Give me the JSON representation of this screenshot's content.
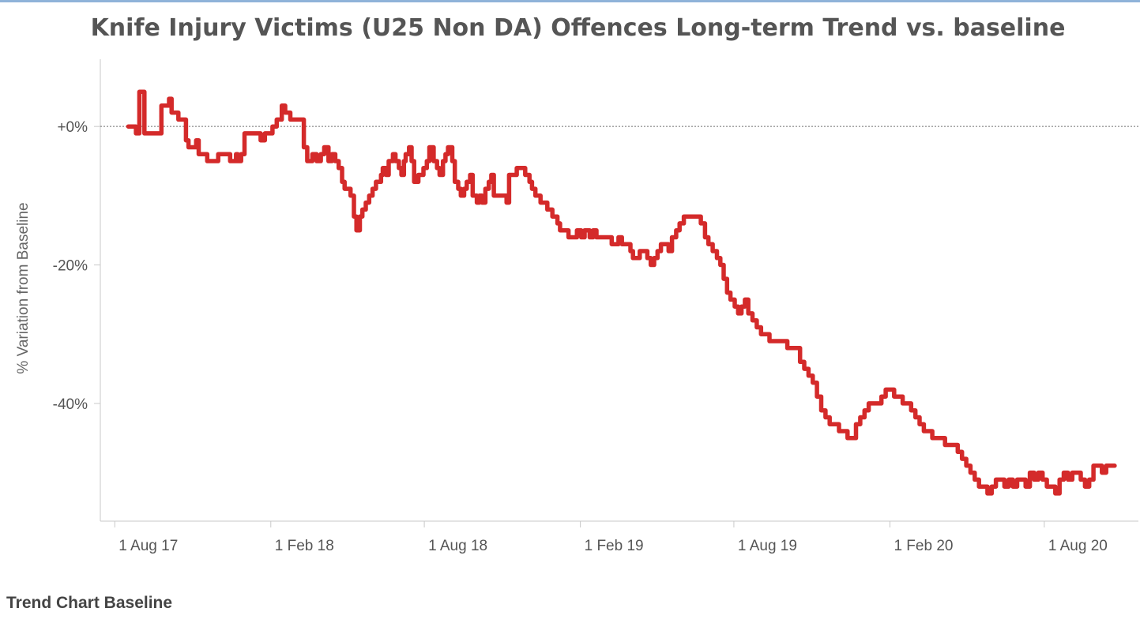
{
  "page": {
    "title": "Knife Injury Victims (U25 Non DA) Offences Long-term Trend vs. baseline",
    "footer": "Trend Chart Baseline"
  },
  "chart_data": {
    "type": "line",
    "title": "Knife Injury Victims (U25 Non DA) Offences Long-term Trend vs. baseline",
    "xlabel": "",
    "ylabel": "% Variation from Baseline",
    "xlim": [
      "2017-07-15",
      "2020-11-20"
    ],
    "ylim": [
      -57,
      8
    ],
    "y_ticks": [
      {
        "value": 0,
        "label": "+0%"
      },
      {
        "value": -20,
        "label": "-20%"
      },
      {
        "value": -40,
        "label": "-40%"
      }
    ],
    "x_ticks": [
      {
        "value": "2017-08-01",
        "label": "1 Aug 17"
      },
      {
        "value": "2018-02-01",
        "label": "1 Feb 18"
      },
      {
        "value": "2018-08-01",
        "label": "1 Aug 18"
      },
      {
        "value": "2019-02-01",
        "label": "1 Feb 19"
      },
      {
        "value": "2019-08-01",
        "label": "1 Aug 19"
      },
      {
        "value": "2020-02-01",
        "label": "1 Feb 20"
      },
      {
        "value": "2020-08-01",
        "label": "1 Aug 20"
      }
    ],
    "baseline": {
      "value": 0,
      "style": "dotted"
    },
    "grid": false,
    "series": [
      {
        "color": "#d42a2a",
        "x": [
          "2017-08-17",
          "2017-08-23",
          "2017-08-26",
          "2017-08-30",
          "2017-09-03",
          "2017-09-05",
          "2017-09-14",
          "2017-09-17",
          "2017-09-25",
          "2017-09-30",
          "2017-10-04",
          "2017-10-07",
          "2017-10-15",
          "2017-10-18",
          "2017-10-24",
          "2017-10-27",
          "2017-11-01",
          "2017-11-05",
          "2017-11-08",
          "2017-11-10",
          "2017-11-12",
          "2017-11-18",
          "2017-11-23",
          "2017-12-01",
          "2017-12-15",
          "2017-12-18",
          "2017-12-22",
          "2017-12-24",
          "2017-12-28",
          "2018-01-01",
          "2018-01-04",
          "2018-01-08",
          "2018-01-15",
          "2018-01-20",
          "2018-01-25",
          "2018-02-01",
          "2018-02-03",
          "2018-02-08",
          "2018-02-14",
          "2018-02-18",
          "2018-02-24",
          "2018-02-27",
          "2018-03-04",
          "2018-03-07",
          "2018-03-12",
          "2018-03-16",
          "2018-03-22",
          "2018-03-27",
          "2018-04-01",
          "2018-04-05",
          "2018-04-10",
          "2018-04-14",
          "2018-04-18",
          "2018-04-22",
          "2018-04-26",
          "2018-04-29",
          "2018-05-02",
          "2018-05-06",
          "2018-05-10",
          "2018-05-13",
          "2018-05-17",
          "2018-05-20",
          "2018-05-24",
          "2018-05-28",
          "2018-06-01",
          "2018-06-05",
          "2018-06-07",
          "2018-06-11",
          "2018-06-13",
          "2018-06-17",
          "2018-06-20",
          "2018-06-25",
          "2018-06-28",
          "2018-07-02",
          "2018-07-05",
          "2018-07-08",
          "2018-07-10",
          "2018-07-14",
          "2018-07-17",
          "2018-07-20",
          "2018-07-25",
          "2018-07-27",
          "2018-07-31",
          "2018-08-04",
          "2018-08-07",
          "2018-08-12",
          "2018-08-16",
          "2018-08-19",
          "2018-08-23",
          "2018-08-26",
          "2018-08-29",
          "2018-09-03",
          "2018-09-06",
          "2018-09-10",
          "2018-09-13",
          "2018-09-17",
          "2018-09-20",
          "2018-09-24",
          "2018-09-27",
          "2018-10-02",
          "2018-10-05",
          "2018-10-08",
          "2018-10-12",
          "2018-10-16",
          "2018-10-19",
          "2018-10-22",
          "2018-10-26",
          "2018-10-29",
          "2018-11-02",
          "2018-11-06",
          "2018-11-09",
          "2018-11-14",
          "2018-11-18",
          "2018-11-20",
          "2018-11-28",
          "2018-12-03",
          "2018-12-06",
          "2018-12-10",
          "2018-12-16",
          "2018-12-20",
          "2018-12-24",
          "2018-12-30",
          "2019-01-05",
          "2019-01-08",
          "2019-01-13",
          "2019-01-18",
          "2019-01-22",
          "2019-01-28",
          "2019-02-02",
          "2019-02-06",
          "2019-02-12",
          "2019-02-16",
          "2019-02-20",
          "2019-02-25",
          "2019-03-01",
          "2019-03-06",
          "2019-03-10",
          "2019-03-14",
          "2019-03-18",
          "2019-03-22",
          "2019-03-27",
          "2019-04-01",
          "2019-04-04",
          "2019-04-08",
          "2019-04-12",
          "2019-04-17",
          "2019-04-21",
          "2019-04-25",
          "2019-04-29",
          "2019-05-03",
          "2019-05-07",
          "2019-05-12",
          "2019-05-16",
          "2019-05-20",
          "2019-05-25",
          "2019-05-29",
          "2019-06-03",
          "2019-06-08",
          "2019-06-13",
          "2019-06-18",
          "2019-06-23",
          "2019-06-28",
          "2019-07-02",
          "2019-07-07",
          "2019-07-12",
          "2019-07-16",
          "2019-07-20",
          "2019-07-24",
          "2019-07-28",
          "2019-08-02",
          "2019-08-06",
          "2019-08-10",
          "2019-08-14",
          "2019-08-18",
          "2019-08-23",
          "2019-08-28",
          "2019-09-02",
          "2019-09-07",
          "2019-09-12",
          "2019-09-18",
          "2019-09-23",
          "2019-09-28",
          "2019-10-03",
          "2019-10-08",
          "2019-10-13",
          "2019-10-18",
          "2019-10-23",
          "2019-10-28",
          "2019-11-02",
          "2019-11-07",
          "2019-11-12",
          "2019-11-17",
          "2019-11-22",
          "2019-11-28",
          "2019-12-03",
          "2019-12-08",
          "2019-12-13",
          "2019-12-18",
          "2019-12-23",
          "2019-12-28",
          "2020-01-02",
          "2020-01-07",
          "2020-01-12",
          "2020-01-17",
          "2020-01-22",
          "2020-01-27",
          "2020-02-01",
          "2020-02-06",
          "2020-02-11",
          "2020-02-16",
          "2020-02-21",
          "2020-02-26",
          "2020-03-02",
          "2020-03-07",
          "2020-03-12",
          "2020-03-17",
          "2020-03-22",
          "2020-03-27",
          "2020-04-01",
          "2020-04-06",
          "2020-04-11",
          "2020-04-16",
          "2020-04-21",
          "2020-04-26",
          "2020-05-01",
          "2020-05-06",
          "2020-05-11",
          "2020-05-16",
          "2020-05-21",
          "2020-05-26",
          "2020-05-31",
          "2020-06-05",
          "2020-06-10",
          "2020-06-15",
          "2020-06-20",
          "2020-06-25",
          "2020-06-30",
          "2020-07-05",
          "2020-07-10",
          "2020-07-15",
          "2020-07-20",
          "2020-07-25",
          "2020-07-30",
          "2020-08-04",
          "2020-08-09",
          "2020-08-14",
          "2020-08-19",
          "2020-08-24",
          "2020-08-29",
          "2020-09-03",
          "2020-09-08",
          "2020-09-13",
          "2020-09-18",
          "2020-09-23",
          "2020-09-28",
          "2020-10-03",
          "2020-10-08",
          "2020-10-13",
          "2020-10-18",
          "2020-10-23"
        ],
        "y": [
          0,
          0,
          -1,
          5,
          5,
          -1,
          -1,
          -1,
          3,
          3,
          4,
          2,
          1,
          1,
          -2,
          -3,
          -3,
          -2,
          -4,
          -4,
          -4,
          -5,
          -5,
          -4,
          -5,
          -5,
          -4,
          -5,
          -4,
          -1,
          -1,
          -1,
          -1,
          -2,
          -1,
          -1,
          0,
          1,
          3,
          2,
          1,
          1,
          1,
          1,
          -3,
          -5,
          -4,
          -5,
          -4,
          -3,
          -5,
          -4,
          -5,
          -6,
          -8,
          -9,
          -9,
          -10,
          -13,
          -15,
          -13,
          -12,
          -11,
          -10,
          -9,
          -8,
          -8,
          -7,
          -6,
          -7,
          -5,
          -4,
          -5,
          -6,
          -7,
          -5,
          -4,
          -3,
          -5,
          -8,
          -7,
          -7,
          -6,
          -5,
          -3,
          -5,
          -6,
          -7,
          -5,
          -4,
          -3,
          -5,
          -8,
          -9,
          -10,
          -9,
          -8,
          -7,
          -10,
          -11,
          -10,
          -11,
          -9,
          -8,
          -7,
          -10,
          -10,
          -10,
          -10,
          -11,
          -7,
          -7,
          -6,
          -6,
          -7,
          -8,
          -9,
          -10,
          -11,
          -11,
          -12,
          -13,
          -14,
          -15,
          -15,
          -16,
          -16,
          -15,
          -16,
          -15,
          -16,
          -15,
          -16,
          -16,
          -16,
          -16,
          -17,
          -17,
          -16,
          -17,
          -17,
          -18,
          -19,
          -19,
          -18,
          -18,
          -19,
          -20,
          -19,
          -18,
          -17,
          -17,
          -18,
          -16,
          -15,
          -14,
          -13,
          -13,
          -13,
          -13,
          -14,
          -16,
          -17,
          -18,
          -19,
          -20,
          -22,
          -24,
          -25,
          -26,
          -27,
          -26,
          -25,
          -27,
          -28,
          -29,
          -30,
          -30,
          -31,
          -31,
          -31,
          -31,
          -32,
          -32,
          -32,
          -34,
          -35,
          -36,
          -37,
          -39,
          -41,
          -42,
          -43,
          -43,
          -44,
          -44,
          -45,
          -45,
          -43,
          -42,
          -41,
          -40,
          -40,
          -40,
          -39,
          -38,
          -38,
          -39,
          -39,
          -40,
          -40,
          -41,
          -42,
          -43,
          -44,
          -44,
          -45,
          -45,
          -45,
          -46,
          -46,
          -46,
          -47,
          -48,
          -49,
          -50,
          -51,
          -52,
          -52,
          -53,
          -52,
          -51,
          -51,
          -52,
          -51,
          -52,
          -51,
          -51,
          -52,
          -50,
          -51,
          -50,
          -51,
          -52,
          -52,
          -53,
          -51,
          -50,
          -51,
          -50,
          -50,
          -51,
          -52,
          -51,
          -49,
          -49,
          -50,
          -49,
          -49,
          -49
        ]
      }
    ]
  }
}
